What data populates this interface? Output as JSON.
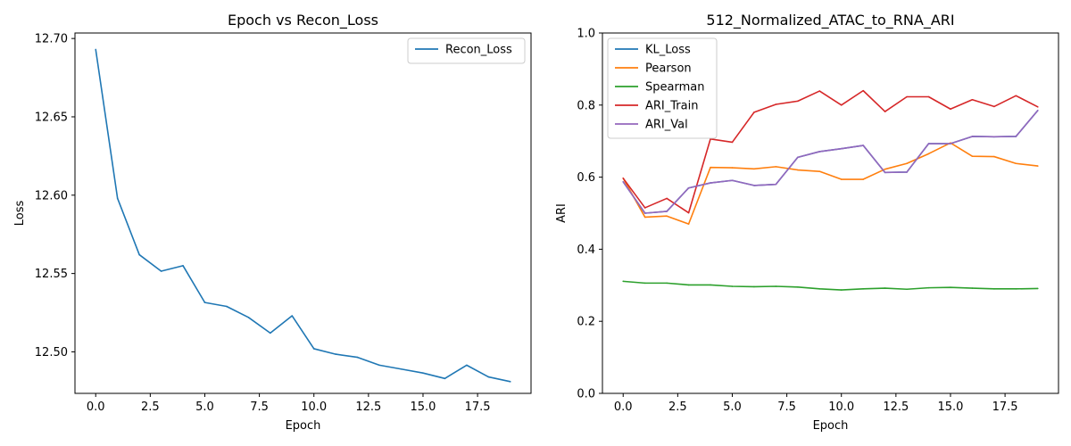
{
  "chart_data": [
    {
      "type": "line",
      "title": "Epoch vs Recon_Loss",
      "xlabel": "Epoch",
      "ylabel": "Loss",
      "xlim": [
        -0.95,
        19.95
      ],
      "ylim": [
        12.4735,
        12.7035
      ],
      "xticks": [
        0.0,
        2.5,
        5.0,
        7.5,
        10.0,
        12.5,
        15.0,
        17.5
      ],
      "xtick_labels": [
        "0.0",
        "2.5",
        "5.0",
        "7.5",
        "10.0",
        "12.5",
        "15.0",
        "17.5"
      ],
      "yticks": [
        12.5,
        12.55,
        12.6,
        12.65,
        12.7
      ],
      "ytick_labels": [
        "12.50",
        "12.55",
        "12.60",
        "12.65",
        "12.70"
      ],
      "legend_position": "top-right",
      "grid": false,
      "x": [
        0,
        1,
        2,
        3,
        4,
        5,
        6,
        7,
        8,
        9,
        10,
        11,
        12,
        13,
        14,
        15,
        16,
        17,
        18,
        19
      ],
      "series": [
        {
          "name": "Recon_Loss",
          "color": "#1f77b4",
          "values": [
            12.693,
            12.598,
            12.562,
            12.5515,
            12.555,
            12.5315,
            12.529,
            12.522,
            12.512,
            12.523,
            12.502,
            12.4985,
            12.4965,
            12.4915,
            12.489,
            12.4865,
            12.483,
            12.4915,
            12.484,
            12.481
          ]
        }
      ]
    },
    {
      "type": "line",
      "title": "512_Normalized_ATAC_to_RNA_ARI",
      "xlabel": "Epoch",
      "ylabel": "ARI",
      "xlim": [
        -0.95,
        19.95
      ],
      "ylim": [
        0.0,
        1.0
      ],
      "xticks": [
        0.0,
        2.5,
        5.0,
        7.5,
        10.0,
        12.5,
        15.0,
        17.5
      ],
      "xtick_labels": [
        "0.0",
        "2.5",
        "5.0",
        "7.5",
        "10.0",
        "12.5",
        "15.0",
        "17.5"
      ],
      "yticks": [
        0.0,
        0.2,
        0.4,
        0.6,
        0.8,
        1.0
      ],
      "ytick_labels": [
        "0.0",
        "0.2",
        "0.4",
        "0.6",
        "0.8",
        "1.0"
      ],
      "legend_position": "top-left",
      "grid": false,
      "x": [
        0,
        1,
        2,
        3,
        4,
        5,
        6,
        7,
        8,
        9,
        10,
        11,
        12,
        13,
        14,
        15,
        16,
        17,
        18,
        19
      ],
      "series": [
        {
          "name": "KL_Loss",
          "color": "#1f77b4",
          "values": [
            0.587,
            0.5,
            0.505,
            0.57,
            0.584,
            0.591,
            0.577,
            0.58,
            0.655,
            0.671,
            0.679,
            0.688,
            0.613,
            0.614,
            0.693,
            0.693,
            0.713,
            0.712,
            0.713,
            0.785
          ]
        },
        {
          "name": "Pearson",
          "color": "#ff7f0e",
          "values": [
            0.597,
            0.489,
            0.492,
            0.47,
            0.627,
            0.626,
            0.623,
            0.629,
            0.62,
            0.616,
            0.594,
            0.594,
            0.622,
            0.638,
            0.665,
            0.695,
            0.658,
            0.657,
            0.638,
            0.631
          ]
        },
        {
          "name": "Spearman",
          "color": "#2ca02c",
          "values": [
            0.311,
            0.306,
            0.306,
            0.301,
            0.301,
            0.297,
            0.296,
            0.297,
            0.295,
            0.29,
            0.287,
            0.29,
            0.292,
            0.289,
            0.293,
            0.294,
            0.292,
            0.29,
            0.29,
            0.291
          ]
        },
        {
          "name": "ARI_Train",
          "color": "#d62728",
          "values": [
            0.597,
            0.515,
            0.541,
            0.501,
            0.706,
            0.697,
            0.78,
            0.802,
            0.811,
            0.839,
            0.8,
            0.84,
            0.782,
            0.823,
            0.823,
            0.789,
            0.815,
            0.796,
            0.826,
            0.795
          ]
        },
        {
          "name": "ARI_Val",
          "color": "#9467bd",
          "values": [
            0.587,
            0.5,
            0.505,
            0.57,
            0.584,
            0.591,
            0.577,
            0.58,
            0.655,
            0.671,
            0.679,
            0.688,
            0.613,
            0.614,
            0.693,
            0.693,
            0.713,
            0.712,
            0.713,
            0.785
          ]
        }
      ]
    }
  ]
}
